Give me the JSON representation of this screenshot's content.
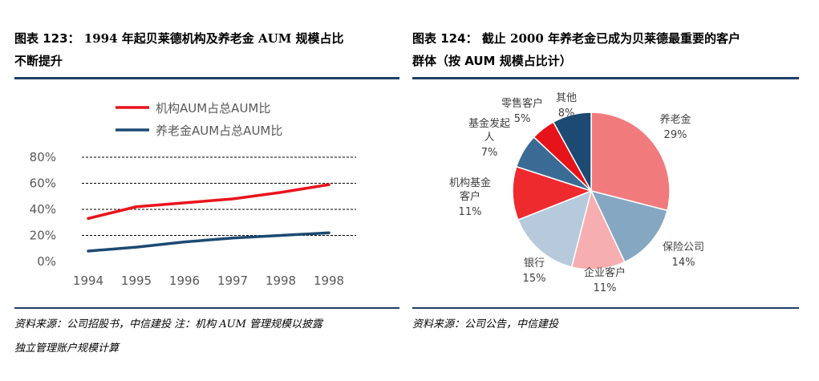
{
  "left": {
    "title_fig": "图表 123：",
    "title_line1": "1994 年起贝莱德机构及养老金 AUM 规模占比",
    "title_line2": "不断提升",
    "source_line1": "资料来源：公司招股书，中信建投 注：机构 AUM 管理规模以披露",
    "source_line2": "独立管理账户规模计算"
  },
  "right": {
    "title_fig": "图表 124：",
    "title_line1": "截止 2000 年养老金已成为贝莱德最重要的客户",
    "title_line2": "群体（按 AUM 规模占比计）",
    "source_line1": "资料来源：公司公告，中信建投"
  },
  "chart_data": [
    {
      "type": "line",
      "title": "",
      "x": [
        "1994",
        "1995",
        "1996",
        "1997",
        "1998",
        "1998"
      ],
      "series": [
        {
          "name": "机构AUM占总AUM比",
          "color": "#e8141c",
          "values": [
            33,
            42,
            45,
            48,
            53,
            59
          ]
        },
        {
          "name": "养老金AUM占总AUM比",
          "color": "#1c4a72",
          "values": [
            8,
            11,
            15,
            18,
            20,
            22
          ]
        }
      ],
      "ylim": [
        0,
        80
      ],
      "yticks": [
        "0%",
        "20%",
        "40%",
        "60%",
        "80%"
      ],
      "grid": "dashed-horizontal",
      "legend": "top-center"
    },
    {
      "type": "pie",
      "slices": [
        {
          "label": "养老金",
          "value": 29,
          "pct": "29%",
          "color": "#f17b7c"
        },
        {
          "label": "保险公司",
          "value": 14,
          "pct": "14%",
          "color": "#85a7c2"
        },
        {
          "label": "企业客户",
          "value": 11,
          "pct": "11%",
          "color": "#f6aeb0"
        },
        {
          "label": "银行",
          "value": 15,
          "pct": "15%",
          "color": "#b7cadb"
        },
        {
          "label": "机构基金客户",
          "value": 11,
          "pct": "11%",
          "color": "#ee2a2f"
        },
        {
          "label": "基金发起人",
          "value": 7,
          "pct": "7%",
          "color": "#3a6b94"
        },
        {
          "label": "零售客户",
          "value": 5,
          "pct": "5%",
          "color": "#e6141a"
        },
        {
          "label": "其他",
          "value": 8,
          "pct": "8%",
          "color": "#1c4a72"
        }
      ]
    }
  ]
}
